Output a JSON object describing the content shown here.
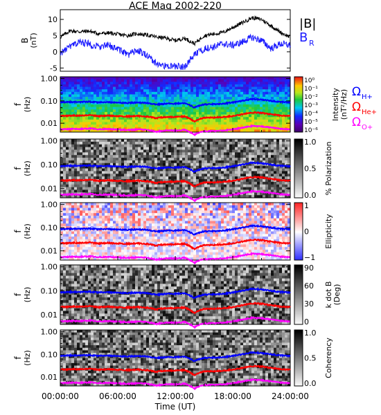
{
  "title": "ACE Mag 2002-220",
  "x_axis": {
    "label": "Time (UT)",
    "ticks": [
      "00:00:00",
      "06:00:00",
      "12:00:00",
      "18:00:00",
      "24:00:00"
    ]
  },
  "colors": {
    "btotal": "#000000",
    "br": "#1a1aff",
    "h": "#0000ff",
    "he": "#ff0000",
    "o": "#ff00ff"
  },
  "legend_top": {
    "btotal": "|B|",
    "br_base": "B",
    "br_sub": "R"
  },
  "legend_gyro": {
    "omega": "Ω",
    "h_sub": "H+",
    "he_sub": "He+",
    "o_sub": "O+"
  },
  "panels": [
    {
      "name": "B",
      "ylabel": "B",
      "ylabel2": "(nT)",
      "yticks": [
        "10",
        "5",
        "0",
        "-5"
      ]
    },
    {
      "name": "intensity",
      "ylabel": "f",
      "ylabel2": "(Hz)",
      "yticks": [
        "1.00",
        "0.10",
        "0.01"
      ],
      "colorbar": "rainbow",
      "cbar_title": "Intensity",
      "cbar_unit": "(nT²/Hz)",
      "cbar_ticks": [
        "10⁰",
        "10⁻¹",
        "10⁻²",
        "10⁻³",
        "10⁻⁴",
        "10⁻⁵",
        "10⁻⁶"
      ]
    },
    {
      "name": "polarization",
      "ylabel": "f",
      "ylabel2": "(Hz)",
      "yticks": [
        "1.00",
        "0.10",
        "0.01"
      ],
      "colorbar": "gray",
      "cbar_title": "% Polarization",
      "cbar_unit": "",
      "cbar_ticks": [
        "1.0",
        "0.5",
        "0.0"
      ]
    },
    {
      "name": "ellipticity",
      "ylabel": "f",
      "ylabel2": "(Hz)",
      "yticks": [
        "1.00",
        "0.10",
        "0.01"
      ],
      "colorbar": "bwr",
      "cbar_title": "Ellipticity",
      "cbar_unit": "",
      "cbar_ticks": [
        "1",
        "0",
        "−1"
      ]
    },
    {
      "name": "kdotb",
      "ylabel": "f",
      "ylabel2": "(Hz)",
      "yticks": [
        "1.00",
        "0.10",
        "0.01"
      ],
      "colorbar": "gray",
      "cbar_title": "k dot B",
      "cbar_unit": "(Deg)",
      "cbar_ticks": [
        "90",
        "60",
        "30",
        "0"
      ]
    },
    {
      "name": "coherency",
      "ylabel": "f",
      "ylabel2": "(Hz)",
      "yticks": [
        "1.00",
        "0.10",
        "0.01"
      ],
      "colorbar": "gray",
      "cbar_title": "Coherency",
      "cbar_unit": "",
      "cbar_ticks": [
        "1.0",
        "0.5",
        "0.0"
      ]
    }
  ],
  "chart_data": {
    "type": "line",
    "x_units": "hours UT",
    "xlim": [
      0,
      24
    ],
    "b_panel": {
      "ylim": [
        -6,
        13
      ],
      "x": [
        0,
        1,
        2,
        3,
        4,
        5,
        6,
        7,
        8,
        9,
        10,
        11,
        12,
        13,
        14,
        15,
        16,
        17,
        18,
        19,
        20,
        21,
        22,
        23,
        24
      ],
      "series": [
        {
          "name": "|B|",
          "values": [
            4.5,
            6.5,
            6.2,
            6.4,
            5.6,
            5.8,
            5.4,
            5.0,
            5.6,
            5.2,
            4.6,
            4.2,
            3.5,
            4.2,
            2.5,
            5.0,
            5.5,
            6.0,
            7.5,
            9.0,
            10.5,
            10.0,
            8.0,
            6.0,
            4.5
          ]
        },
        {
          "name": "B_R",
          "values": [
            -0.5,
            1.5,
            3.0,
            2.5,
            1.5,
            2.0,
            1.0,
            -1.0,
            0.5,
            -1.0,
            -3.5,
            -4.5,
            -4.5,
            -4.5,
            -1.0,
            1.0,
            1.5,
            2.5,
            2.0,
            3.0,
            4.5,
            3.5,
            1.0,
            2.5,
            2.0
          ]
        }
      ]
    },
    "spectrogram_panels": {
      "ylim_hz": [
        0.004,
        1.2
      ],
      "y_scale": "log",
      "x": [
        0,
        1,
        2,
        3,
        4,
        5,
        6,
        7,
        8,
        9,
        10,
        11,
        12,
        13,
        14,
        15,
        16,
        17,
        18,
        19,
        20,
        21,
        22,
        23,
        24
      ],
      "series": [
        {
          "name": "ΩH+",
          "values": [
            0.085,
            0.09,
            0.088,
            0.092,
            0.086,
            0.088,
            0.082,
            0.08,
            0.084,
            0.082,
            0.068,
            0.076,
            0.075,
            0.08,
            0.05,
            0.07,
            0.072,
            0.075,
            0.085,
            0.1,
            0.12,
            0.115,
            0.1,
            0.09,
            0.085
          ]
        },
        {
          "name": "ΩHe+",
          "values": [
            0.021,
            0.022,
            0.022,
            0.023,
            0.021,
            0.022,
            0.021,
            0.02,
            0.021,
            0.02,
            0.017,
            0.019,
            0.019,
            0.02,
            0.012,
            0.018,
            0.018,
            0.019,
            0.021,
            0.025,
            0.03,
            0.029,
            0.025,
            0.022,
            0.021
          ]
        },
        {
          "name": "ΩO+",
          "values": [
            0.0053,
            0.0056,
            0.0055,
            0.0058,
            0.0054,
            0.0055,
            0.0052,
            0.005,
            0.0052,
            0.0051,
            0.0042,
            0.0048,
            0.0047,
            0.005,
            0.0031,
            0.0044,
            0.0045,
            0.0047,
            0.0053,
            0.0063,
            0.0075,
            0.0072,
            0.0063,
            0.0056,
            0.0053
          ]
        }
      ]
    }
  }
}
